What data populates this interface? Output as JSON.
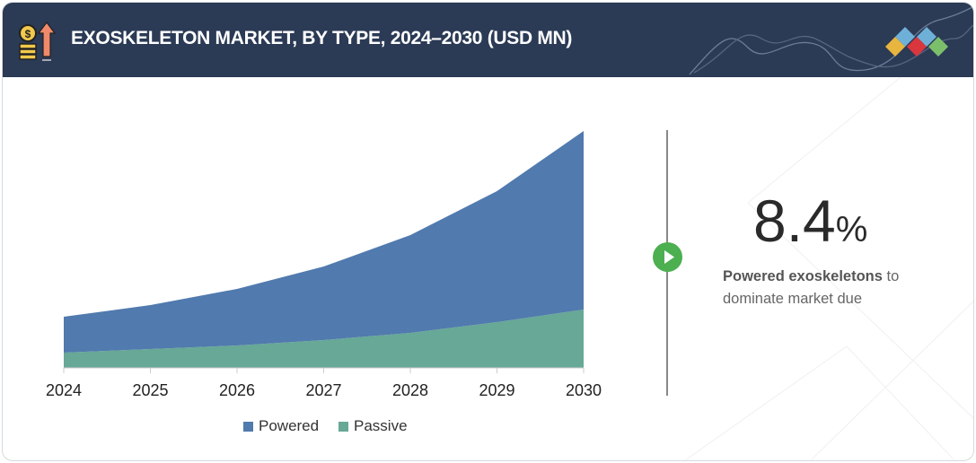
{
  "header": {
    "title": "EXOSKELETON MARKET, BY TYPE, 2024–2030 (USD MN)",
    "icon": "coins-arrow-up-icon",
    "logo": "diamond-logo"
  },
  "chart_data": {
    "type": "area",
    "stacked": true,
    "title": "EXOSKELETON MARKET, BY TYPE, 2024–2030 (USD MN)",
    "categories": [
      "2024",
      "2025",
      "2026",
      "2027",
      "2028",
      "2029",
      "2030"
    ],
    "series": [
      {
        "name": "Passive",
        "values": [
          17,
          21,
          25,
          31,
          39,
          51,
          65
        ],
        "color": "#67a896"
      },
      {
        "name": "Powered",
        "values": [
          40,
          49,
          63,
          82,
          109,
          146,
          199
        ],
        "color": "#517aae"
      }
    ],
    "ylim": [
      0,
      264
    ],
    "grid": false,
    "legend": "bottom"
  },
  "legend": [
    {
      "label": "Powered",
      "color": "#517aae"
    },
    {
      "label": "Passive",
      "color": "#67a896"
    }
  ],
  "highlight": {
    "value": "8.4",
    "unit": "%",
    "bold_text": "Powered exoskeletons",
    "text_1": " to",
    "text_2": "dominate market due"
  }
}
